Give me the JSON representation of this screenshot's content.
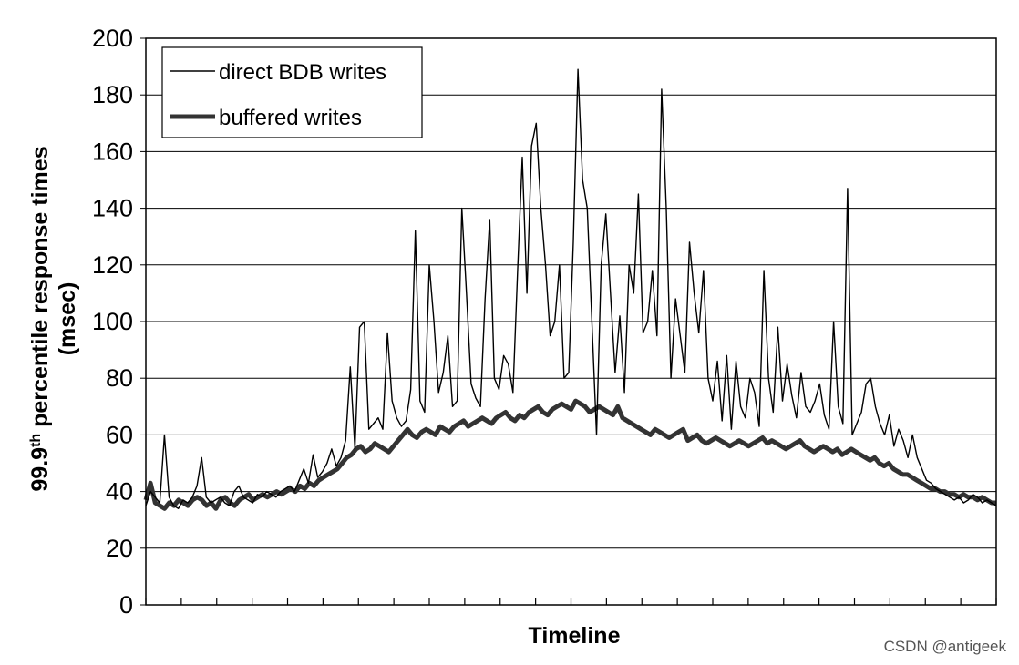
{
  "chart_data": {
    "type": "line",
    "title": "",
    "xlabel": "Timeline",
    "ylabel": "99.9th percentile response times (msec)",
    "ylabel_parts": {
      "line1_pre": "99.9",
      "line1_sup": "th",
      "line1_post": " percentile response times",
      "line2": "(msec)"
    },
    "ylim": [
      0,
      200
    ],
    "yticks": [
      0,
      20,
      40,
      60,
      80,
      100,
      120,
      140,
      160,
      180,
      200
    ],
    "grid": true,
    "legend_position": "top-left",
    "x_tick_count": 24,
    "series": [
      {
        "name": "direct BDB writes",
        "style": "thin",
        "color": "#000000",
        "values": [
          35,
          40,
          38,
          36,
          60,
          38,
          35,
          34,
          37,
          36,
          38,
          42,
          52,
          38,
          36,
          37,
          38,
          36,
          35,
          40,
          42,
          38,
          37,
          36,
          39,
          38,
          40,
          39,
          38,
          40,
          41,
          42,
          40,
          44,
          48,
          43,
          53,
          45,
          47,
          50,
          55,
          49,
          52,
          58,
          84,
          55,
          98,
          100,
          62,
          64,
          66,
          62,
          96,
          72,
          66,
          63,
          65,
          76,
          132,
          72,
          68,
          120,
          100,
          75,
          82,
          95,
          70,
          72,
          140,
          110,
          78,
          73,
          70,
          108,
          136,
          80,
          76,
          88,
          85,
          75,
          118,
          158,
          110,
          162,
          170,
          140,
          120,
          95,
          100,
          120,
          80,
          82,
          128,
          189,
          150,
          140,
          100,
          60,
          120,
          138,
          110,
          82,
          102,
          75,
          120,
          110,
          145,
          96,
          100,
          118,
          95,
          182,
          140,
          80,
          108,
          95,
          82,
          128,
          110,
          96,
          118,
          80,
          72,
          86,
          65,
          88,
          62,
          86,
          70,
          66,
          80,
          75,
          63,
          118,
          80,
          68,
          98,
          72,
          85,
          74,
          66,
          82,
          70,
          68,
          72,
          78,
          67,
          62,
          100,
          70,
          64,
          147,
          60,
          64,
          68,
          78,
          80,
          70,
          64,
          60,
          67,
          56,
          62,
          58,
          52,
          60,
          52,
          48,
          44,
          43,
          41,
          40,
          39,
          38,
          37,
          38,
          36,
          37,
          39,
          38,
          36,
          37,
          36,
          35
        ]
      },
      {
        "name": "buffered writes",
        "style": "thick",
        "color": "#333333",
        "values": [
          37,
          43,
          36,
          35,
          34,
          36,
          35,
          37,
          36,
          35,
          37,
          38,
          37,
          35,
          36,
          34,
          37,
          38,
          36,
          35,
          37,
          38,
          39,
          37,
          38,
          39,
          38,
          39,
          40,
          39,
          40,
          41,
          40,
          42,
          41,
          43,
          42,
          44,
          45,
          46,
          47,
          48,
          50,
          52,
          53,
          55,
          56,
          54,
          55,
          57,
          56,
          55,
          54,
          56,
          58,
          60,
          62,
          60,
          59,
          61,
          62,
          61,
          60,
          63,
          62,
          61,
          63,
          64,
          65,
          63,
          64,
          65,
          66,
          65,
          64,
          66,
          67,
          68,
          66,
          65,
          67,
          66,
          68,
          69,
          70,
          68,
          67,
          69,
          70,
          71,
          70,
          69,
          72,
          71,
          70,
          68,
          69,
          70,
          69,
          68,
          67,
          70,
          66,
          65,
          64,
          63,
          62,
          61,
          60,
          62,
          61,
          60,
          59,
          60,
          61,
          62,
          58,
          59,
          60,
          58,
          57,
          58,
          59,
          58,
          57,
          56,
          57,
          58,
          57,
          56,
          57,
          58,
          59,
          57,
          58,
          57,
          56,
          55,
          56,
          57,
          58,
          56,
          55,
          54,
          55,
          56,
          55,
          54,
          55,
          53,
          54,
          55,
          54,
          53,
          52,
          51,
          52,
          50,
          49,
          50,
          48,
          47,
          46,
          46,
          45,
          44,
          43,
          42,
          41,
          41,
          40,
          40,
          39,
          39,
          38,
          39,
          38,
          38,
          37,
          38,
          37,
          36,
          36
        ]
      }
    ]
  },
  "watermark": "CSDN @antigeek"
}
